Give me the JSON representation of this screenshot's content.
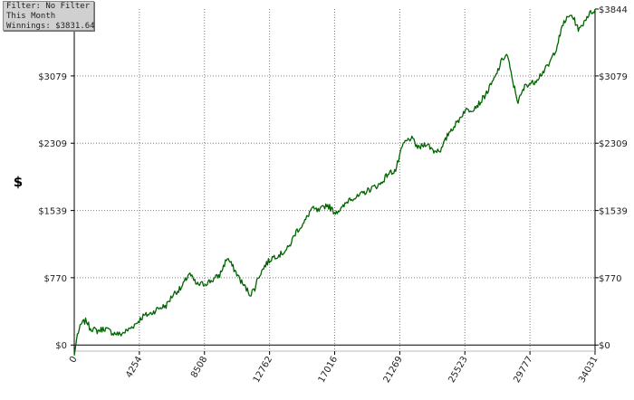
{
  "info_box": {
    "filter_line": "Filter: No Filter",
    "period_line": "This Month",
    "winnings_line": "Winnings: $3831.64"
  },
  "colors": {
    "line": "#006400",
    "grid": "#808080",
    "axis": "#000000",
    "info_box_background": "#d0d0d0"
  },
  "chart_data": {
    "type": "line",
    "title": "",
    "xlabel": "",
    "ylabel": "$",
    "xlim": [
      0,
      34031
    ],
    "ylim": [
      -70,
      3844
    ],
    "x_ticks": [
      0,
      4254,
      8508,
      12762,
      17016,
      21269,
      25523,
      29777,
      34031
    ],
    "x_tick_labels": [
      "0",
      "4254",
      "8508",
      "12762",
      "17016",
      "21269",
      "25523",
      "29777",
      "34031"
    ],
    "y_ticks": [
      0,
      770,
      1539,
      2309,
      3079,
      3844
    ],
    "y_tick_labels_left": [
      "$0",
      "$770",
      "$1539",
      "$2309",
      "$3079"
    ],
    "y_tick_labels_right": [
      "$0",
      "$770",
      "$1539",
      "$2309",
      "$3079",
      "$3844"
    ],
    "grid": true,
    "legend": "none",
    "series": [
      {
        "x": [
          0,
          200,
          500,
          800,
          1000,
          1500,
          2000,
          2500,
          3000,
          3500,
          4000,
          4500,
          5000,
          5500,
          6000,
          6500,
          7000,
          7500,
          8000,
          8500,
          9000,
          9500,
          10000,
          10500,
          11000,
          11500,
          11800,
          12000,
          12500,
          13000,
          13500,
          14000,
          14500,
          15000,
          15500,
          16000,
          16500,
          17000,
          17500,
          18000,
          18500,
          19000,
          19500,
          20000,
          20500,
          21000,
          21500,
          22000,
          22500,
          23000,
          23500,
          24000,
          24500,
          25000,
          25500,
          26000,
          26500,
          27000,
          27500,
          28000,
          28300,
          28600,
          29000,
          29500,
          30000,
          30500,
          31000,
          31500,
          32000,
          32500,
          33000,
          33500,
          34031
        ],
        "y": [
          -120,
          120,
          250,
          280,
          200,
          160,
          190,
          140,
          120,
          170,
          240,
          330,
          360,
          420,
          450,
          590,
          650,
          820,
          690,
          700,
          740,
          800,
          1000,
          850,
          700,
          580,
          650,
          770,
          920,
          1010,
          1040,
          1110,
          1300,
          1390,
          1560,
          1530,
          1610,
          1520,
          1560,
          1680,
          1690,
          1750,
          1800,
          1840,
          1960,
          2000,
          2300,
          2370,
          2250,
          2310,
          2220,
          2240,
          2440,
          2540,
          2680,
          2700,
          2770,
          2900,
          3060,
          3280,
          3320,
          3050,
          2780,
          2980,
          3000,
          3100,
          3200,
          3400,
          3700,
          3780,
          3600,
          3760,
          3844
        ]
      }
    ]
  }
}
